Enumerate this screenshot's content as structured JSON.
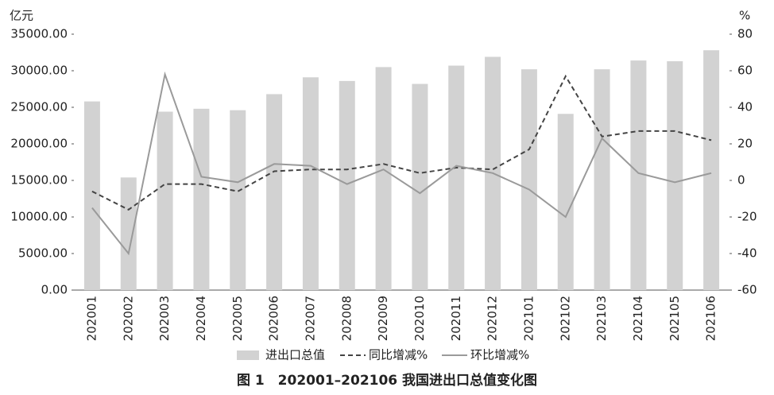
{
  "chart_data": {
    "type": "bar",
    "y_unit_label": "亿元",
    "y2_unit_label": "%",
    "caption": "图 1　202001–202106 我国进出口总值变化图",
    "categories": [
      "202001",
      "202002",
      "202003",
      "202004",
      "202005",
      "202006",
      "202007",
      "202008",
      "202009",
      "202010",
      "202011",
      "202012",
      "202101",
      "202102",
      "202103",
      "202104",
      "202105",
      "202106"
    ],
    "series": [
      {
        "name": "进出口总值",
        "type": "bar",
        "color": "#d2d2d2",
        "values": [
          25800,
          15400,
          24400,
          24800,
          24600,
          26800,
          29100,
          28600,
          30500,
          28200,
          30700,
          31900,
          30200,
          24100,
          30200,
          31400,
          31300,
          32800
        ]
      },
      {
        "name": "同比增减%",
        "type": "line",
        "axis": "y2",
        "color": "#444444",
        "line_style": "dashed",
        "values": [
          -6,
          -16,
          -2,
          -2,
          -6,
          5,
          6,
          6,
          9,
          4,
          7,
          6,
          17,
          57,
          24,
          27,
          27,
          22
        ]
      },
      {
        "name": "环比增减%",
        "type": "line",
        "axis": "y2",
        "color": "#9a9a9a",
        "line_style": "solid",
        "values": [
          -15,
          -40,
          58,
          2,
          -1,
          9,
          8,
          -2,
          6,
          -7,
          8,
          4,
          -5,
          -20,
          23,
          4,
          -1,
          4
        ]
      }
    ],
    "ylim": [
      0,
      35000
    ],
    "yticks": [
      {
        "value": 0,
        "label": "0.00"
      },
      {
        "value": 5000,
        "label": "5000.00"
      },
      {
        "value": 10000,
        "label": "10000.00"
      },
      {
        "value": 15000,
        "label": "15000.00"
      },
      {
        "value": 20000,
        "label": "20000.00"
      },
      {
        "value": 25000,
        "label": "25000.00"
      },
      {
        "value": 30000,
        "label": "30000.00"
      },
      {
        "value": 35000,
        "label": "35000.00"
      }
    ],
    "y2lim": [
      -60,
      80
    ],
    "y2ticks": [
      -60,
      -40,
      -20,
      0,
      20,
      40,
      60,
      80
    ],
    "grid": false
  }
}
